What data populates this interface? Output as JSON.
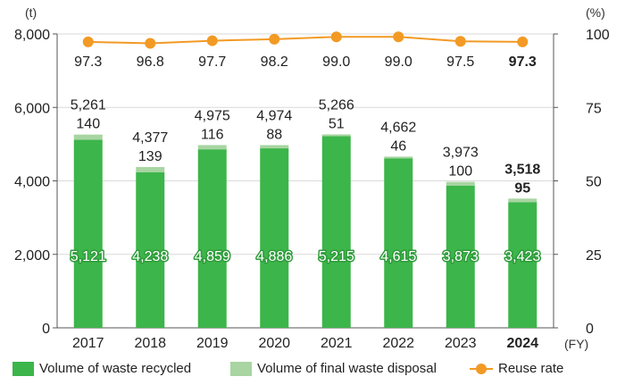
{
  "chart_data": {
    "type": "bar",
    "categories": [
      "2017",
      "2018",
      "2019",
      "2020",
      "2021",
      "2022",
      "2023",
      "2024"
    ],
    "x_unit": "(FY)",
    "left_axis": {
      "unit": "(t)",
      "range": [
        0,
        8000
      ],
      "ticks": [
        "0",
        "2,000",
        "4,000",
        "6,000",
        "8,000"
      ],
      "tick_values": [
        0,
        2000,
        4000,
        6000,
        8000
      ]
    },
    "right_axis": {
      "unit": "(%)",
      "range": [
        0,
        100
      ],
      "ticks": [
        "0",
        "25",
        "50",
        "75",
        "100"
      ],
      "tick_values": [
        0,
        25,
        50,
        75,
        100
      ]
    },
    "series": [
      {
        "name": "Volume of waste recycled",
        "type": "stacked-bar",
        "color": "#3cb54a",
        "values": [
          5121,
          4238,
          4859,
          4886,
          5215,
          4615,
          3873,
          3423
        ],
        "labels": [
          "5,121",
          "4,238",
          "4,859",
          "4,886",
          "5,215",
          "4,615",
          "3,873",
          "3,423"
        ]
      },
      {
        "name": "Volume of final waste disposal",
        "type": "stacked-bar",
        "color": "#a8d5a2",
        "values": [
          140,
          139,
          116,
          88,
          51,
          46,
          100,
          95
        ],
        "labels": [
          "140",
          "139",
          "116",
          "88",
          "51",
          "46",
          "100",
          "95"
        ]
      },
      {
        "name": "Reuse rate",
        "type": "line",
        "axis": "right",
        "color": "#f29a24",
        "values": [
          97.3,
          96.8,
          97.7,
          98.2,
          99.0,
          99.0,
          97.5,
          97.3
        ],
        "labels": [
          "97.3",
          "96.8",
          "97.7",
          "98.2",
          "99.0",
          "99.0",
          "97.5",
          "97.3"
        ]
      }
    ],
    "totals": [
      5261,
      4377,
      4975,
      4974,
      5266,
      4662,
      3973,
      3518
    ],
    "total_labels": [
      "5,261",
      "4,377",
      "4,975",
      "4,974",
      "5,266",
      "4,662",
      "3,973",
      "3,518"
    ],
    "highlight_category": "2024"
  },
  "legend": [
    {
      "label": "Volume of waste recycled",
      "color": "#3cb54a",
      "kind": "box"
    },
    {
      "label": "Volume of final waste disposal",
      "color": "#a8d5a2",
      "kind": "box"
    },
    {
      "label": "Reuse rate",
      "color": "#f29a24",
      "kind": "line"
    }
  ]
}
